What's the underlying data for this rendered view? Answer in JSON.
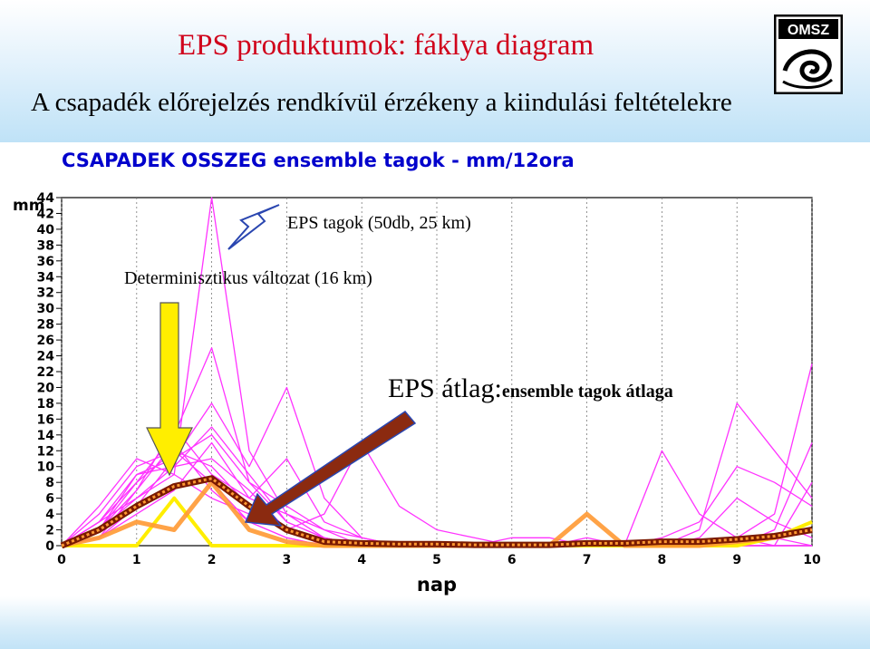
{
  "slide": {
    "title": "EPS produktumok: fáklya diagram",
    "subtitle": "A csapadék előrejelzés rendkívül érzékeny a kiindulási feltételekre"
  },
  "logo": {
    "text": "OMSZ"
  },
  "colors": {
    "title": "#d0021b",
    "ensemble_members": "#ff33ff",
    "deterministic": "#ffee00",
    "ensemble_mean": "#ff9933",
    "mean_outline": "#7a1a00",
    "chart_title": "#0000cc",
    "header_band": "#bfe2f7"
  },
  "annotations": {
    "eps_members": "EPS tagok (50db, 25 km)",
    "deterministic": "Determinisztikus változat (16 km)",
    "eps_mean_big": "EPS átlag:",
    "eps_mean_small": "ensemble tagok átlaga"
  },
  "chart_data": {
    "type": "line",
    "title": "CSAPADEK OSSZEG ensemble tagok - mm/12ora",
    "xlabel": "nap",
    "ylabel": "mm",
    "xlim": [
      0,
      10
    ],
    "ylim": [
      0,
      44
    ],
    "xticks": [
      0,
      1,
      2,
      3,
      4,
      5,
      6,
      7,
      8,
      9,
      10
    ],
    "yticks": [
      0,
      2,
      4,
      6,
      8,
      10,
      12,
      14,
      16,
      18,
      20,
      22,
      24,
      26,
      28,
      30,
      32,
      34,
      36,
      38,
      40,
      42,
      44
    ],
    "x": [
      0,
      0.5,
      1,
      1.5,
      2,
      2.5,
      3,
      3.5,
      4,
      4.5,
      5,
      5.5,
      6,
      6.5,
      7,
      7.5,
      8,
      8.5,
      9,
      9.5,
      10
    ],
    "series": [
      {
        "name": "EPS tagok (50db, 25 km)",
        "role": "members",
        "lines": [
          [
            0,
            3,
            6,
            9,
            44,
            12,
            4,
            1,
            0,
            0,
            0,
            0,
            0,
            0,
            0,
            0,
            0,
            0,
            0,
            1,
            2
          ],
          [
            0,
            2,
            8,
            14,
            25,
            8,
            3,
            1,
            0,
            0,
            0,
            0,
            0,
            0,
            0,
            0,
            1,
            3,
            10,
            8,
            5
          ],
          [
            0,
            1,
            5,
            11,
            18,
            10,
            20,
            6,
            1,
            0,
            0,
            0,
            0,
            0,
            0,
            0,
            0,
            0,
            0,
            1,
            0
          ],
          [
            0,
            4,
            10,
            12,
            8,
            3,
            1,
            0,
            0,
            0,
            0,
            0,
            0,
            0,
            0,
            0,
            0,
            0,
            1,
            4,
            23
          ],
          [
            0,
            2,
            7,
            15,
            9,
            6,
            4,
            2,
            1,
            0,
            0,
            0,
            0,
            0,
            0,
            0,
            0,
            2,
            18,
            12,
            6
          ],
          [
            0,
            3,
            9,
            10,
            11,
            7,
            2,
            1,
            0,
            0,
            0,
            0,
            0,
            0,
            0,
            0,
            0,
            0,
            0,
            0,
            0
          ],
          [
            0,
            1,
            4,
            7,
            13,
            6,
            11,
            3,
            1,
            0,
            0,
            0,
            0,
            0,
            0,
            0,
            0,
            0,
            0,
            2,
            13
          ],
          [
            0,
            5,
            11,
            9,
            6,
            4,
            2,
            0,
            0,
            0,
            0,
            0,
            1,
            1,
            0,
            0,
            0,
            0,
            0,
            0,
            0
          ],
          [
            0,
            2,
            6,
            10,
            15,
            9,
            3,
            1,
            0,
            0,
            0,
            0,
            0,
            0,
            0,
            0,
            0,
            1,
            6,
            3,
            1
          ],
          [
            0,
            3,
            8,
            12,
            10,
            5,
            2,
            4,
            13,
            5,
            2,
            1,
            0,
            0,
            0,
            0,
            0,
            0,
            0,
            0,
            0
          ],
          [
            0,
            1,
            7,
            13,
            7,
            3,
            1,
            0,
            0,
            0,
            0,
            0,
            0,
            0,
            1,
            0,
            12,
            4,
            1,
            0,
            0
          ],
          [
            0,
            2,
            9,
            11,
            14,
            8,
            5,
            2,
            0,
            0,
            0,
            0,
            0,
            0,
            0,
            0,
            0,
            0,
            0,
            0,
            8
          ]
        ]
      },
      {
        "name": "Determinisztikus változat (16 km)",
        "role": "deterministic",
        "values": [
          0,
          0,
          0,
          6,
          0,
          0,
          0,
          0,
          0,
          0,
          0,
          0,
          0,
          0,
          0,
          0,
          0,
          0,
          0,
          1,
          3
        ]
      },
      {
        "name": "EPS átlag",
        "role": "mean",
        "values": [
          0,
          2,
          5,
          7.5,
          8.5,
          5,
          2,
          0.5,
          0.3,
          0.2,
          0.2,
          0.1,
          0.1,
          0.1,
          0.3,
          0.3,
          0.5,
          0.5,
          0.8,
          1.2,
          2
        ]
      },
      {
        "name": "",
        "role": "overlay",
        "values": [
          0,
          1,
          3,
          2,
          8,
          2,
          0.5,
          0,
          0,
          0,
          0,
          0,
          0,
          0,
          4,
          0,
          0,
          0,
          0.5,
          1,
          2
        ]
      }
    ]
  }
}
